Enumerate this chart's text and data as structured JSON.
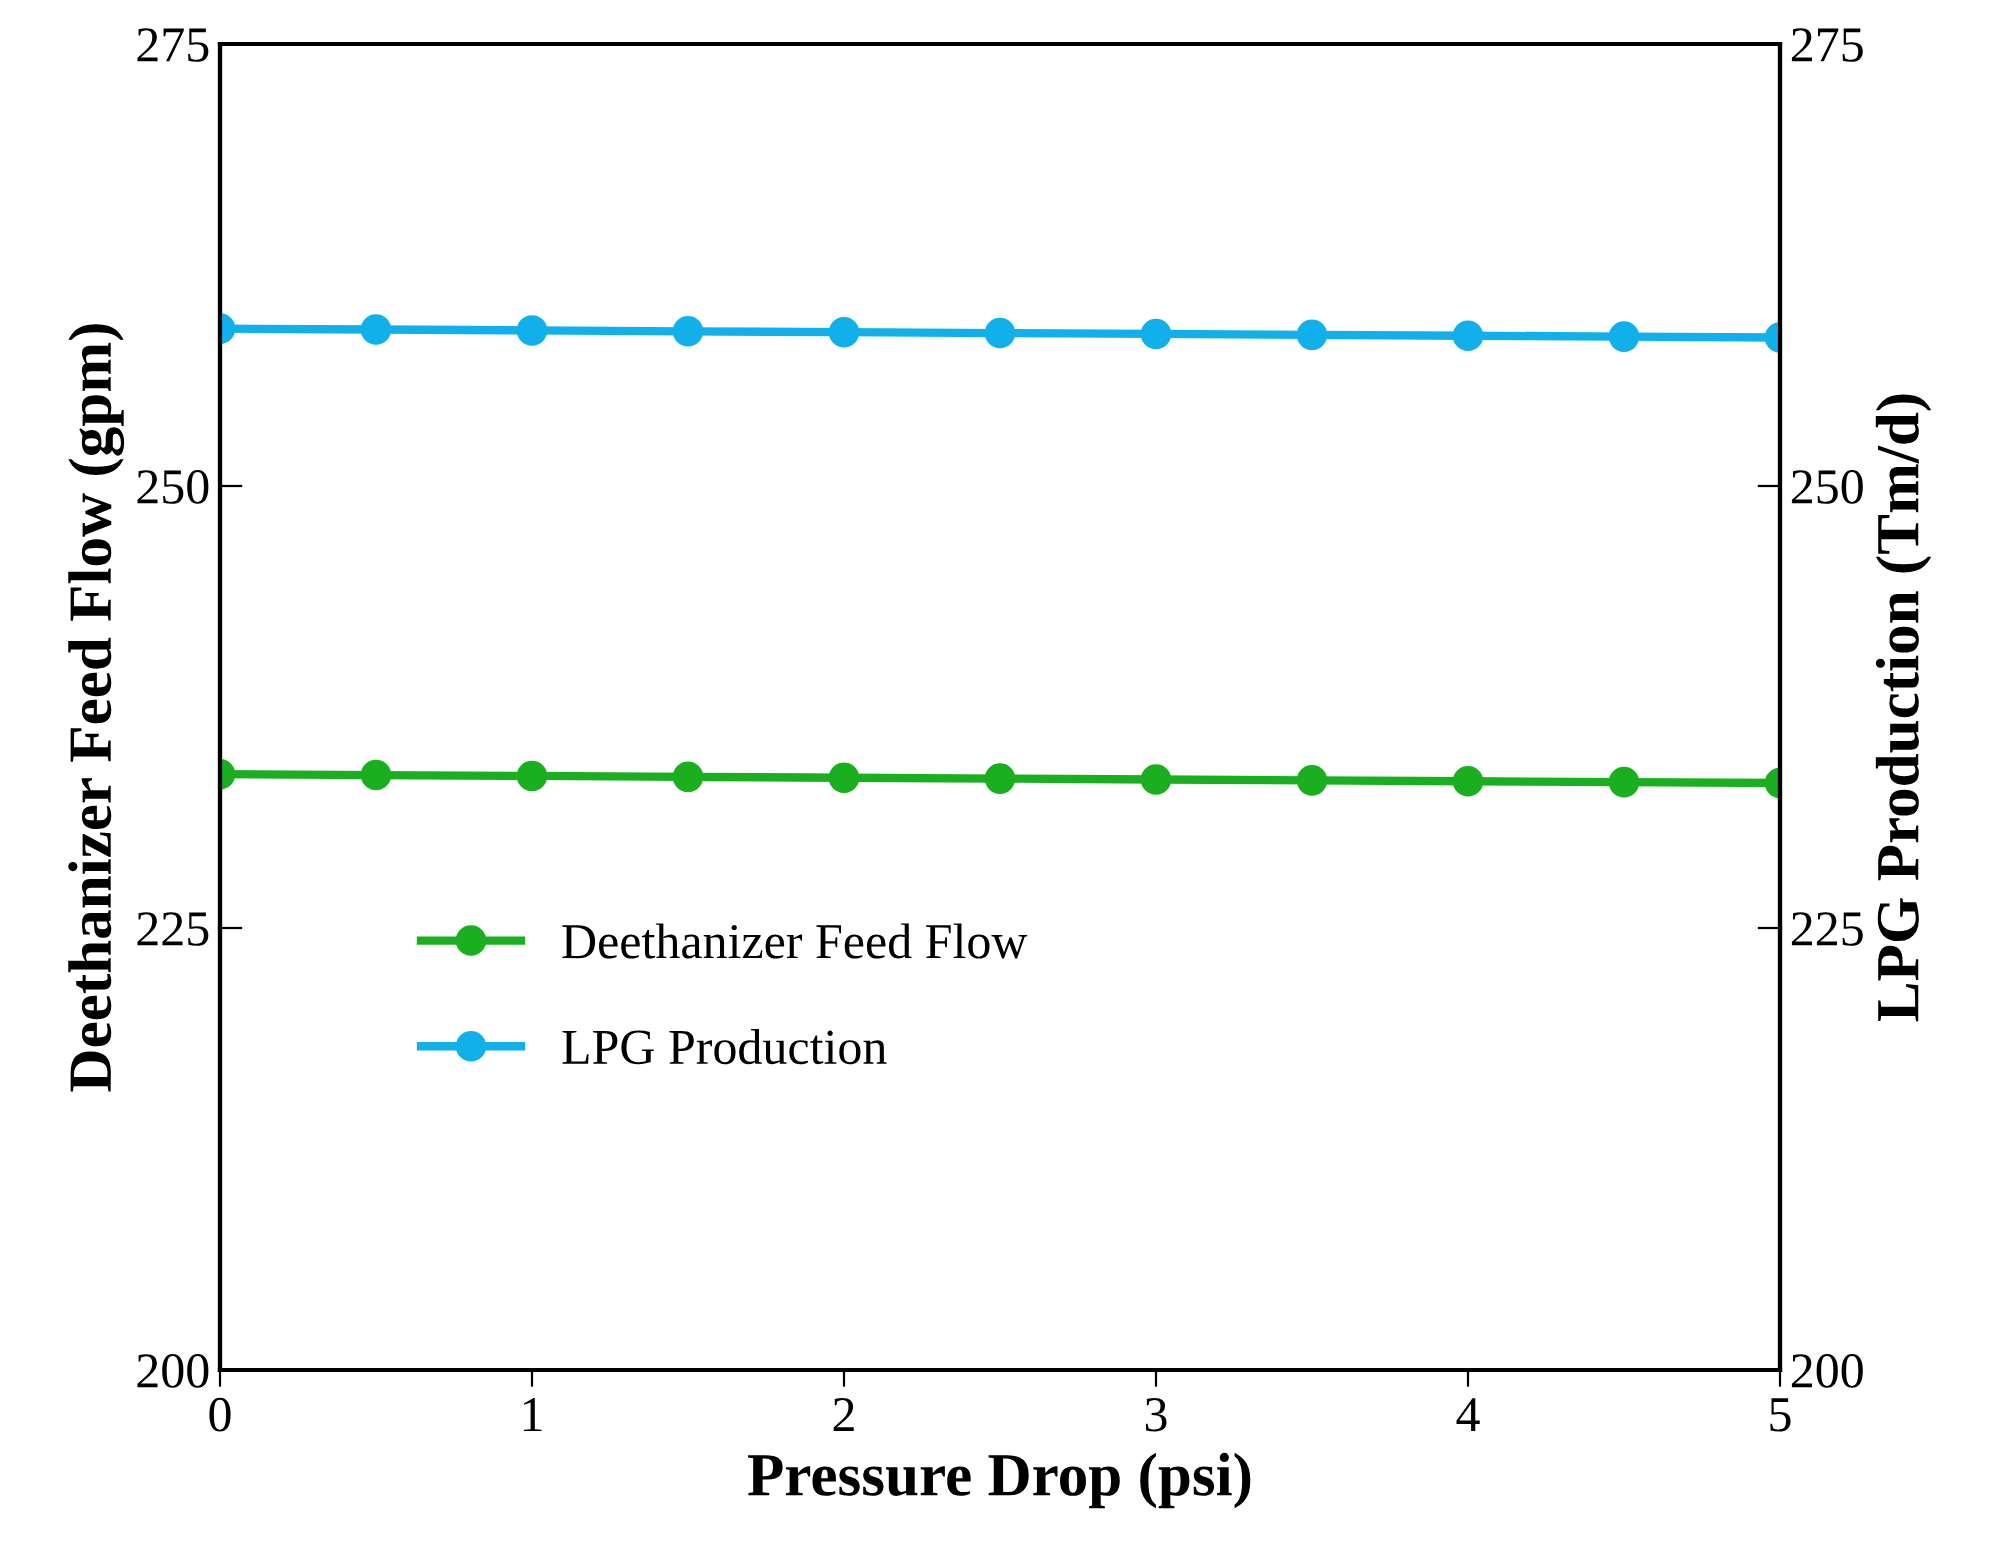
{
  "chart_data": {
    "type": "line",
    "xlabel": "Pressure Drop (psi)",
    "ylabel": "Deethanizer Feed Flow (gpm)",
    "y2label": "LPG Production (Tm/d)",
    "x": [
      0,
      0.5,
      1,
      1.5,
      2,
      2.5,
      3,
      3.5,
      4,
      4.5,
      5
    ],
    "series": [
      {
        "name": "Deethanizer Feed Flow",
        "color": "#1aaf1f",
        "values": [
          233.7,
          233.65,
          233.6,
          233.55,
          233.5,
          233.45,
          233.4,
          233.35,
          233.3,
          233.25,
          233.2
        ]
      },
      {
        "name": "LPG Production",
        "color": "#12b0ea",
        "axis": "y2",
        "values": [
          258.9,
          258.85,
          258.8,
          258.75,
          258.7,
          258.65,
          258.6,
          258.55,
          258.5,
          258.45,
          258.4
        ]
      }
    ],
    "xlim": [
      0,
      5
    ],
    "xticks": [
      0,
      1,
      2,
      3,
      4,
      5
    ],
    "ylim": [
      200,
      275
    ],
    "yticks": [
      200,
      225,
      250,
      275
    ],
    "y2lim": [
      200,
      275
    ],
    "y2ticks": [
      200,
      225,
      250,
      275
    ],
    "marker": "circle",
    "line_style": "solid",
    "legend": "left",
    "grid": false
  }
}
